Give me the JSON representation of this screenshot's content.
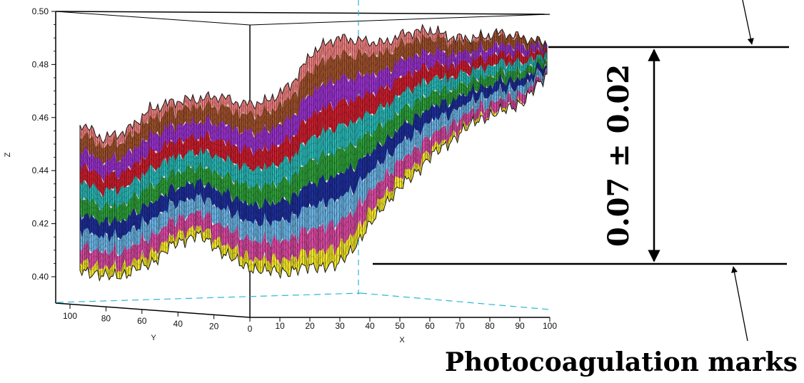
{
  "chart_data": {
    "type": "surface3d",
    "zlabel": "Z",
    "xlabel": "X",
    "ylabel": "Y",
    "z_ticks": [
      "0.50",
      "0.48",
      "0.46",
      "0.44",
      "0.42",
      "0.40"
    ],
    "zlim": [
      0.39,
      0.5
    ],
    "y_ticks": [
      "100",
      "80",
      "60",
      "40",
      "20",
      "0"
    ],
    "x_ticks": [
      "10",
      "20",
      "30",
      "40",
      "50",
      "60",
      "70",
      "80",
      "90",
      "100"
    ],
    "xlim": [
      0,
      100
    ],
    "ylim": [
      100,
      0
    ],
    "surface_profile": {
      "x_distance": [
        0,
        5,
        10,
        15,
        20,
        25,
        30,
        35,
        40,
        45,
        50,
        55,
        60,
        65,
        70,
        75,
        80,
        85,
        90,
        95,
        100
      ],
      "z_top": [
        0.458,
        0.452,
        0.455,
        0.463,
        0.466,
        0.467,
        0.468,
        0.465,
        0.466,
        0.472,
        0.485,
        0.49,
        0.489,
        0.488,
        0.492,
        0.493,
        0.49,
        0.49,
        0.492,
        0.49,
        0.488
      ],
      "z_bottom": [
        0.403,
        0.4,
        0.401,
        0.405,
        0.412,
        0.416,
        0.41,
        0.404,
        0.402,
        0.402,
        0.404,
        0.404,
        0.414,
        0.427,
        0.436,
        0.445,
        0.452,
        0.459,
        0.462,
        0.466,
        0.476
      ]
    },
    "color_bands": [
      "#f08080",
      "#a0522d",
      "#9932cc",
      "#cc1f2e",
      "#2ab7b5",
      "#2e9e3a",
      "#1e2f9a",
      "#6cb4e4",
      "#d84aa0",
      "#f2e52a"
    ],
    "range_annotation": {
      "label": "0.07 ± 0.02",
      "z_top": 0.487,
      "z_bottom": 0.405
    },
    "caption": "Photocoagulation marks"
  }
}
